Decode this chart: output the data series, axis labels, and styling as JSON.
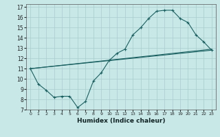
{
  "xlabel": "Humidex (Indice chaleur)",
  "bg_color": "#c8e8e8",
  "grid_color": "#aacccc",
  "line_color": "#1a6060",
  "xlim": [
    -0.5,
    23.5
  ],
  "ylim": [
    7,
    17.3
  ],
  "yticks": [
    7,
    8,
    9,
    10,
    11,
    12,
    13,
    14,
    15,
    16,
    17
  ],
  "xticks": [
    0,
    1,
    2,
    3,
    4,
    5,
    6,
    7,
    8,
    9,
    10,
    11,
    12,
    13,
    14,
    15,
    16,
    17,
    18,
    19,
    20,
    21,
    22,
    23
  ],
  "line1_x": [
    0,
    1,
    2,
    3,
    4,
    5,
    6,
    7,
    8,
    9,
    10,
    11,
    12,
    13,
    14,
    15,
    16,
    17,
    18,
    19,
    20,
    21,
    22,
    23
  ],
  "line1_y": [
    11,
    9.5,
    8.9,
    8.2,
    8.3,
    8.3,
    7.2,
    7.8,
    9.8,
    10.6,
    11.8,
    12.5,
    12.9,
    14.3,
    15.0,
    15.9,
    16.6,
    16.7,
    16.7,
    15.9,
    15.5,
    14.3,
    13.6,
    12.8
  ],
  "line2_x": [
    0,
    23
  ],
  "line2_y": [
    11,
    12.9
  ],
  "line3_x": [
    0,
    23
  ],
  "line3_y": [
    11,
    12.8
  ]
}
